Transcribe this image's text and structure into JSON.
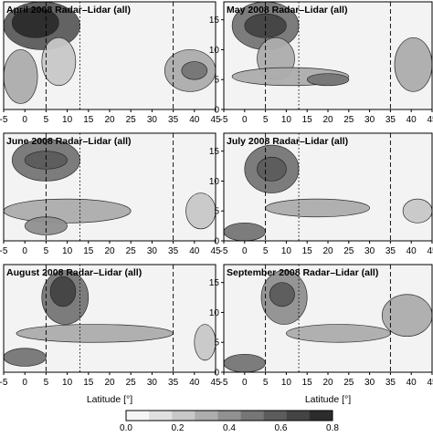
{
  "chart_data": {
    "type": "heatmap",
    "xlabel": "Latitude [°]",
    "xlim": [
      -5,
      45
    ],
    "ylim": [
      0,
      18
    ],
    "x_ticks": [
      -5,
      0,
      5,
      10,
      15,
      20,
      25,
      30,
      35,
      40,
      45
    ],
    "y_ticks": [
      0,
      5,
      10,
      15
    ],
    "reference_lines": [
      {
        "style": "dashed",
        "x": 5
      },
      {
        "style": "dotted",
        "x": 13
      },
      {
        "style": "dashed",
        "x": 35
      }
    ],
    "colorbar": {
      "ticks": [
        "0.0",
        "0.2",
        "0.4",
        "0.6",
        "0.8"
      ],
      "range": [
        0.0,
        0.8
      ],
      "colors": [
        "#f5f5f5",
        "#e0e0e0",
        "#c8c8c8",
        "#adadad",
        "#919191",
        "#767676",
        "#5c5c5c",
        "#444444",
        "#2c2c2c"
      ]
    },
    "panels": [
      {
        "title": "April 2008 Radar–Lidar (all)",
        "show_xticks": true,
        "show_yticks": false,
        "show_xlabel": false,
        "blobs": [
          {
            "x": [
              -5,
              13
            ],
            "y": [
              10,
              18
            ],
            "v": 0.55
          },
          {
            "x": [
              -3,
              8
            ],
            "y": [
              12,
              17
            ],
            "v": 0.75
          },
          {
            "x": [
              -5,
              3
            ],
            "y": [
              1,
              10
            ],
            "v": 0.35
          },
          {
            "x": [
              4,
              12
            ],
            "y": [
              4,
              12
            ],
            "v": 0.25
          },
          {
            "x": [
              33,
              45
            ],
            "y": [
              3,
              10
            ],
            "v": 0.35
          },
          {
            "x": [
              37,
              43
            ],
            "y": [
              5,
              8
            ],
            "v": 0.5
          }
        ]
      },
      {
        "title": "May 2008 Radar–Lidar (all)",
        "show_xticks": true,
        "show_yticks": true,
        "show_xlabel": false,
        "blobs": [
          {
            "x": [
              -3,
              13
            ],
            "y": [
              10,
              18
            ],
            "v": 0.5
          },
          {
            "x": [
              0,
              10
            ],
            "y": [
              12,
              16
            ],
            "v": 0.65
          },
          {
            "x": [
              3,
              12
            ],
            "y": [
              5,
              12
            ],
            "v": 0.35
          },
          {
            "x": [
              -3,
              25
            ],
            "y": [
              4,
              7
            ],
            "v": 0.3
          },
          {
            "x": [
              15,
              25
            ],
            "y": [
              4,
              6
            ],
            "v": 0.45
          },
          {
            "x": [
              36,
              45
            ],
            "y": [
              3,
              12
            ],
            "v": 0.3
          }
        ]
      },
      {
        "title": "June 2008 Radar–Lidar (all)",
        "show_xticks": true,
        "show_yticks": false,
        "show_xlabel": false,
        "blobs": [
          {
            "x": [
              -3,
              13
            ],
            "y": [
              10,
              17
            ],
            "v": 0.45
          },
          {
            "x": [
              0,
              10
            ],
            "y": [
              12,
              15
            ],
            "v": 0.6
          },
          {
            "x": [
              -5,
              25
            ],
            "y": [
              3,
              7
            ],
            "v": 0.3
          },
          {
            "x": [
              0,
              10
            ],
            "y": [
              1,
              4
            ],
            "v": 0.4
          },
          {
            "x": [
              38,
              45
            ],
            "y": [
              2,
              8
            ],
            "v": 0.2
          }
        ]
      },
      {
        "title": "July 2008 Radar–Lidar (all)",
        "show_xticks": true,
        "show_yticks": true,
        "show_xlabel": false,
        "blobs": [
          {
            "x": [
              0,
              13
            ],
            "y": [
              8,
              16
            ],
            "v": 0.45
          },
          {
            "x": [
              3,
              10
            ],
            "y": [
              10,
              14
            ],
            "v": 0.6
          },
          {
            "x": [
              5,
              30
            ],
            "y": [
              4,
              7
            ],
            "v": 0.35
          },
          {
            "x": [
              -5,
              5
            ],
            "y": [
              0,
              3
            ],
            "v": 0.45
          },
          {
            "x": [
              38,
              45
            ],
            "y": [
              3,
              7
            ],
            "v": 0.2
          }
        ]
      },
      {
        "title": "August 2008 Radar–Lidar (all)",
        "show_xticks": true,
        "show_yticks": false,
        "show_xlabel": true,
        "blobs": [
          {
            "x": [
              4,
              15
            ],
            "y": [
              8,
              17
            ],
            "v": 0.5
          },
          {
            "x": [
              6,
              12
            ],
            "y": [
              11,
              16
            ],
            "v": 0.65
          },
          {
            "x": [
              -2,
              35
            ],
            "y": [
              5,
              8
            ],
            "v": 0.3
          },
          {
            "x": [
              -5,
              5
            ],
            "y": [
              1,
              4
            ],
            "v": 0.45
          },
          {
            "x": [
              40,
              45
            ],
            "y": [
              2,
              8
            ],
            "v": 0.25
          }
        ]
      },
      {
        "title": "September 2008 Radar–Lidar (all)",
        "show_xticks": true,
        "show_yticks": true,
        "show_xlabel": true,
        "blobs": [
          {
            "x": [
              4,
              15
            ],
            "y": [
              8,
              17
            ],
            "v": 0.4
          },
          {
            "x": [
              6,
              12
            ],
            "y": [
              11,
              15
            ],
            "v": 0.55
          },
          {
            "x": [
              10,
              35
            ],
            "y": [
              5,
              8
            ],
            "v": 0.3
          },
          {
            "x": [
              -5,
              5
            ],
            "y": [
              0,
              3
            ],
            "v": 0.5
          },
          {
            "x": [
              33,
              45
            ],
            "y": [
              6,
              13
            ],
            "v": 0.3
          }
        ]
      }
    ]
  }
}
